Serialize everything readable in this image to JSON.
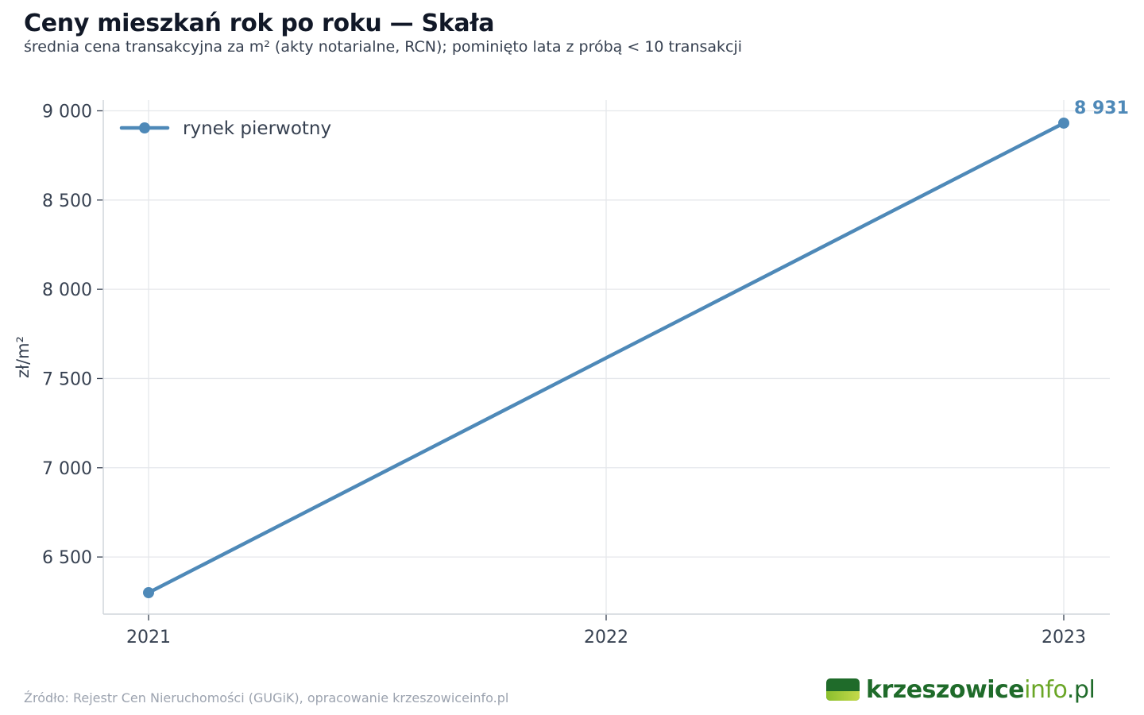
{
  "header": {
    "title": "Ceny mieszkań rok po roku — Skała",
    "subtitle": "średnia cena transakcyjna za m² (akty notarialne, RCN); pominięto lata z próbą < 10 transakcji"
  },
  "footer": {
    "source": "Źródło: Rejestr Cen Nieruchomości (GUGiK), opracowanie krzeszowiceinfo.pl",
    "logo_part1": "krzeszowice",
    "logo_part2": "info",
    "logo_part3": ".pl"
  },
  "colors": {
    "series": "#4e89b8",
    "grid": "#e5e7eb",
    "axis": "#d1d5db",
    "logo_dark": "#1f6b2a",
    "logo_light": "#6aa626"
  },
  "chart_data": {
    "type": "line",
    "title": "Ceny mieszkań rok po roku — Skała",
    "subtitle": "średnia cena transakcyjna za m² (akty notarialne, RCN); pominięto lata z próbą < 10 transakcji",
    "xlabel": "",
    "ylabel": "zł/m²",
    "x": [
      "2021",
      "2022",
      "2023"
    ],
    "xticks": [
      "2021",
      "2022",
      "2023"
    ],
    "ylim": [
      6180,
      9060
    ],
    "yticks": [
      6500,
      7000,
      7500,
      8000,
      8500,
      9000
    ],
    "ytick_labels": [
      "6 500",
      "7 000",
      "7 500",
      "8 000",
      "8 500",
      "9 000"
    ],
    "grid": true,
    "legend_position": "top-left",
    "series": [
      {
        "name": "rynek pierwotny",
        "points": [
          {
            "x": "2021",
            "y": 6300
          },
          {
            "x": "2023",
            "y": 8931
          }
        ],
        "end_label": "8 931",
        "color": "#4e89b8"
      }
    ]
  }
}
